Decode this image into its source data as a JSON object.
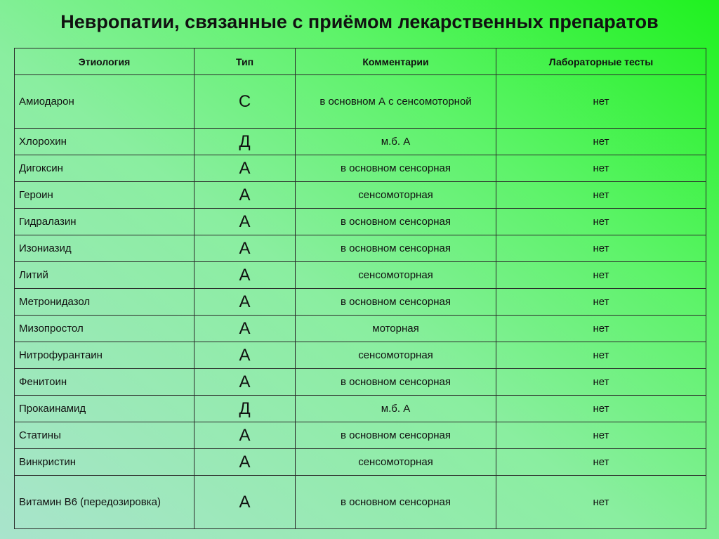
{
  "title": "Невропатии, связанные с приёмом лекарственных препаратов",
  "table": {
    "headers": [
      "Этиология",
      "Тип",
      "Комментарии",
      "Лабораторные тесты"
    ],
    "rows": [
      [
        "Амиодарон",
        "С",
        "в основном А с сенсомоторной",
        "нет"
      ],
      [
        "Хлорохин",
        "Д",
        "м.б. А",
        "нет"
      ],
      [
        "Дигоксин",
        "А",
        "в основном сенсорная",
        "нет"
      ],
      [
        "Героин",
        "А",
        "сенсомоторная",
        "нет"
      ],
      [
        "Гидралазин",
        "А",
        "в основном сенсорная",
        "нет"
      ],
      [
        "Изониазид",
        "А",
        "в основном сенсорная",
        "нет"
      ],
      [
        "Литий",
        "А",
        "сенсомоторная",
        "нет"
      ],
      [
        "Метронидазол",
        "А",
        "в основном сенсорная",
        "нет"
      ],
      [
        "Мизопростол",
        "А",
        "моторная",
        "нет"
      ],
      [
        "Нитрофурантаин",
        "А",
        "сенсомоторная",
        "нет"
      ],
      [
        "Фенитоин",
        "А",
        "в основном сенсорная",
        "нет"
      ],
      [
        "Прокаинамид",
        "Д",
        "м.б. А",
        "нет"
      ],
      [
        "Статины",
        "А",
        "в основном сенсорная",
        "нет"
      ],
      [
        "Винкристин",
        "А",
        "сенсомоторная",
        "нет"
      ],
      [
        "Витамин В6 (передозировка)",
        "А",
        "в основном сенсорная",
        "нет"
      ]
    ]
  }
}
